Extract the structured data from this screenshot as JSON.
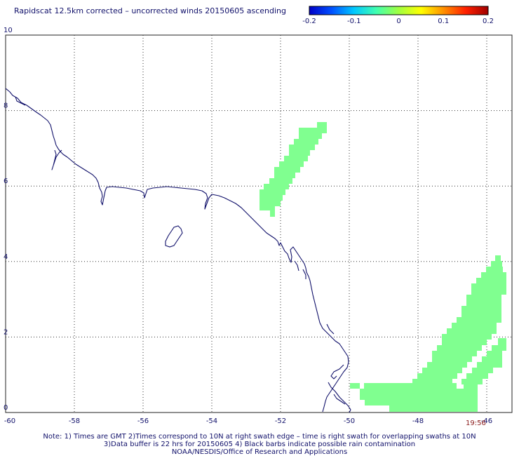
{
  "title": "Rapidscat 12.5km corrected – uncorrected winds 20150605 ascending",
  "colorbar": {
    "ticks": [
      "-0.2",
      "-0.1",
      "0",
      "0.1",
      "0.2"
    ],
    "colors": [
      "#0000c8",
      "#0050ff",
      "#00c8ff",
      "#40ffb0",
      "#a0ff40",
      "#ffff00",
      "#ff9000",
      "#ff2000",
      "#a00000"
    ]
  },
  "map": {
    "x_ticks": [
      "-60",
      "-58",
      "-56",
      "-54",
      "-52",
      "-50",
      "-48",
      "-46"
    ],
    "y_ticks": [
      "10",
      "8",
      "6",
      "4",
      "2",
      "0"
    ],
    "lon_range": [
      -60,
      -45.5
    ],
    "lat_range": [
      0,
      10
    ],
    "grid_lons": [
      -58,
      -56,
      -54,
      -52,
      -50,
      -48,
      -46
    ],
    "grid_lats": [
      2,
      4,
      6,
      8
    ],
    "coast_color": "#10106a",
    "swath_color": "#80ff90",
    "swath_value": 0,
    "time_label": "19:56"
  },
  "notes": {
    "line1": "Note: 1) Times are GMT 2)Times correspond to 10N at right swath edge – time is right swath for overlapping swaths at 10N",
    "line2": "3)Data buffer is 22 hrs for 20150605 4) Black barbs indicate possible rain contamination",
    "line3": "NOAA/NESDIS/Office of Research and Applications"
  }
}
